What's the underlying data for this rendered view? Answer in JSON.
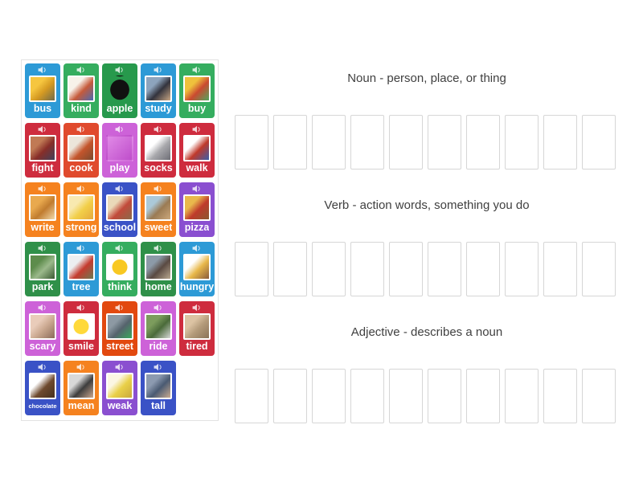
{
  "groups": [
    {
      "title": "Noun - person, place, or thing",
      "slots": 10
    },
    {
      "title": "Verb - action words, something you do",
      "slots": 10
    },
    {
      "title": "Adjective - describes a noun",
      "slots": 10
    }
  ],
  "cards": [
    {
      "word": "bus",
      "color": "#2d9ad6",
      "image": {
        "name": "school-bus-photo",
        "style": "photo",
        "colors": [
          "#f6c63f",
          "#d59a22",
          "#6f6a4a"
        ]
      }
    },
    {
      "word": "kind",
      "color": "#35ad5f",
      "image": {
        "name": "kids-sharing-clipart",
        "style": "photo",
        "colors": [
          "#f7f2ea",
          "#c65a3a",
          "#4a6ab2"
        ]
      }
    },
    {
      "word": "apple",
      "color": "#27994c",
      "image": {
        "name": "apple-logo",
        "style": "logo",
        "colors": [
          "#111111"
        ]
      }
    },
    {
      "word": "study",
      "color": "#2d9ad6",
      "image": {
        "name": "student-studying-photo",
        "style": "photo",
        "colors": [
          "#8da4bd",
          "#33333d",
          "#c9a684"
        ]
      }
    },
    {
      "word": "buy",
      "color": "#35ad5f",
      "image": {
        "name": "shopping-basket-clipart",
        "style": "photo",
        "colors": [
          "#efc13c",
          "#cb4a30",
          "#4fa75e"
        ]
      }
    },
    {
      "word": "fight",
      "color": "#ce2c3e",
      "image": {
        "name": "boxing-match-photo",
        "style": "photo",
        "colors": [
          "#c07a55",
          "#872e28",
          "#40405a"
        ]
      }
    },
    {
      "word": "cook",
      "color": "#e04a2d",
      "image": {
        "name": "cooking-photo",
        "style": "photo",
        "colors": [
          "#ece6da",
          "#c4552c",
          "#7a4a2e"
        ]
      }
    },
    {
      "word": "play",
      "color": "#cd62d8",
      "image": {
        "name": "children-playing-clipart",
        "style": "photo-full",
        "colors": [
          "#e089e6",
          "#bf4ecb"
        ]
      }
    },
    {
      "word": "socks",
      "color": "#ce2c3e",
      "image": {
        "name": "sock-photo",
        "style": "photo",
        "colors": [
          "#ffffff",
          "#a8a8ac",
          "#6e6e76"
        ]
      }
    },
    {
      "word": "walk",
      "color": "#ce2c3e",
      "image": {
        "name": "walking-person-clipart",
        "style": "photo",
        "colors": [
          "#ffffff",
          "#c0392b",
          "#3a5fa8"
        ]
      }
    },
    {
      "word": "write",
      "color": "#f5821f",
      "image": {
        "name": "handwritten-note-photo",
        "style": "photo",
        "colors": [
          "#e9a94e",
          "#c07c2f",
          "#f2daa9"
        ]
      }
    },
    {
      "word": "strong",
      "color": "#f5821f",
      "image": {
        "name": "flexing-arm-clipart",
        "style": "photo",
        "colors": [
          "#f8e9b0",
          "#f2cf49",
          "#e5a93c"
        ]
      }
    },
    {
      "word": "school",
      "color": "#3a52c6",
      "image": {
        "name": "school-building-clipart",
        "style": "photo",
        "colors": [
          "#ead9b9",
          "#c24a3a",
          "#8a6a4a"
        ]
      }
    },
    {
      "word": "sweet",
      "color": "#f5821f",
      "image": {
        "name": "cookies-photo",
        "style": "photo",
        "colors": [
          "#abc9d9",
          "#9b7b54",
          "#cba87c"
        ]
      }
    },
    {
      "word": "pizza",
      "color": "#8a4fd0",
      "image": {
        "name": "pizza-photo",
        "style": "photo",
        "colors": [
          "#e9b84c",
          "#bf3a2c",
          "#8a5a2e"
        ]
      }
    },
    {
      "word": "park",
      "color": "#2f9049",
      "image": {
        "name": "park-photo",
        "style": "photo",
        "colors": [
          "#5d8c4c",
          "#9bb98b",
          "#3a5a33"
        ]
      }
    },
    {
      "word": "tree",
      "color": "#2d9ad6",
      "image": {
        "name": "red-tree-photo",
        "style": "photo",
        "colors": [
          "#eceff1",
          "#c53b2e",
          "#6c7a52"
        ]
      }
    },
    {
      "word": "think",
      "color": "#35ad5f",
      "image": {
        "name": "thinking-face-emoji",
        "style": "circle",
        "colors": [
          "#f8c822"
        ]
      }
    },
    {
      "word": "home",
      "color": "#2f9049",
      "image": {
        "name": "house-photo",
        "style": "photo",
        "colors": [
          "#8c9aa8",
          "#5a4a42",
          "#b8a890"
        ]
      }
    },
    {
      "word": "hungry",
      "color": "#2d9ad6",
      "image": {
        "name": "hungry-girl-clipart",
        "style": "photo",
        "colors": [
          "#ffffff",
          "#e8b84a",
          "#8a5a3a"
        ]
      }
    },
    {
      "word": "scary",
      "color": "#cd62d8",
      "image": {
        "name": "baby-face-photo",
        "style": "photo",
        "colors": [
          "#e9ccba",
          "#c9a78f",
          "#8a6a5a"
        ]
      }
    },
    {
      "word": "smile",
      "color": "#ce2c3e",
      "image": {
        "name": "smiley-face-emoji",
        "style": "circle",
        "colors": [
          "#ffd93a"
        ]
      }
    },
    {
      "word": "street",
      "color": "#e2490f",
      "image": {
        "name": "street-photo",
        "style": "photo",
        "colors": [
          "#8d99a3",
          "#55636c",
          "#3aa85c"
        ]
      }
    },
    {
      "word": "ride",
      "color": "#cd62d8",
      "image": {
        "name": "bike-riding-photo",
        "style": "photo",
        "colors": [
          "#7c9c5d",
          "#4a6a3a",
          "#d9d9d9"
        ]
      }
    },
    {
      "word": "tired",
      "color": "#ce2c3e",
      "image": {
        "name": "tired-person-photo",
        "style": "photo",
        "colors": [
          "#dcc3a3",
          "#b39a7a",
          "#8a7258"
        ]
      }
    },
    {
      "word": "chocolate",
      "color": "#3a52c6",
      "image": {
        "name": "chocolate-photo",
        "style": "photo",
        "colors": [
          "#ffffff",
          "#6e4a2e",
          "#45301d"
        ]
      }
    },
    {
      "word": "mean",
      "color": "#f5821f",
      "image": {
        "name": "stern-man-photo",
        "style": "photo",
        "colors": [
          "#d9d9d9",
          "#3d3d3d",
          "#c9a78f"
        ]
      }
    },
    {
      "word": "weak",
      "color": "#8a4fd0",
      "image": {
        "name": "weak-lifter-clipart",
        "style": "photo",
        "colors": [
          "#fbf6e3",
          "#e9d049",
          "#c9a83c"
        ]
      }
    },
    {
      "word": "tall",
      "color": "#3a52c6",
      "image": {
        "name": "tall-people-photo",
        "style": "photo",
        "colors": [
          "#8c9ab0",
          "#4a5a72",
          "#c9ab90"
        ]
      }
    }
  ],
  "icons": {
    "card_audio": "speaker-icon"
  },
  "colors": {
    "slot_border": "#d6d6d6",
    "panel_border": "#e2e2e2",
    "title_text": "#404040",
    "card_text": "#ffffff"
  }
}
